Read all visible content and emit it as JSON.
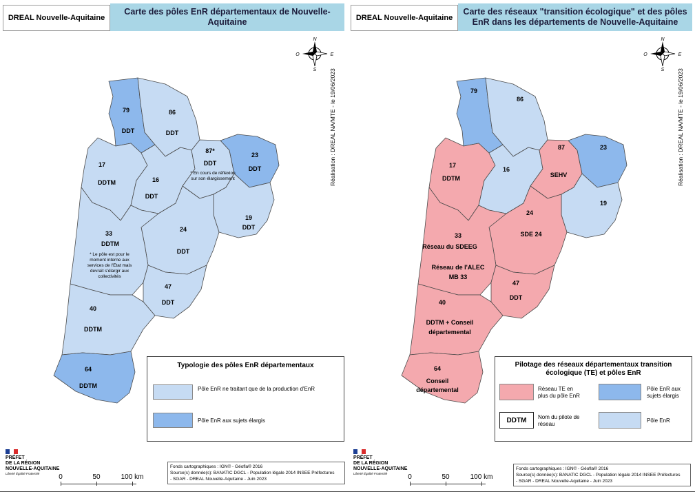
{
  "left": {
    "org": "DREAL Nouvelle-Aquitaine",
    "title": "Carte des pôles EnR départementaux de Nouvelle-Aquitaine",
    "credit": "Réalisation : DREAL NA/MTE - le 19/06/2023",
    "labels": {
      "d79_num": "79",
      "d79_pilot": "DDT",
      "d86_num": "86",
      "d86_pilot": "DDT",
      "d87_num": "87*",
      "d87_pilot": "DDT",
      "d87_note": "* En cours de réflexion sur son élargissement",
      "d23_num": "23",
      "d23_pilot": "DDT",
      "d17_num": "17",
      "d17_pilot": "DDTM",
      "d16_num": "16",
      "d16_pilot": "DDT",
      "d19_num": "19",
      "d19_pilot": "DDT",
      "d24_num": "24",
      "d24_pilot": "DDT",
      "d33_num": "33",
      "d33_pilot": "DDTM",
      "d33_note": "* Le pôle est pour le moment interne aux services de l'Etat mais devrait s'élargir aux collectivités",
      "d47_num": "47",
      "d47_pilot": "DDT",
      "d40_num": "40",
      "d40_pilot": "DDTM",
      "d64_num": "64",
      "d64_pilot": "DDTM"
    },
    "legend": {
      "title": "Typologie des pôles EnR départementaux",
      "item1": "Pôle EnR ne traitant que de la production d'EnR",
      "item2": "Pôle EnR aux sujets élargis"
    }
  },
  "right": {
    "org": "DREAL Nouvelle-Aquitaine",
    "title": "Carte des réseaux \"transition écologique\" et des pôles EnR dans les départements de Nouvelle-Aquitaine",
    "credit": "Réalisation : DREAL NA/MTE - le 19/06/2023",
    "labels": {
      "d79_num": "79",
      "d86_num": "86",
      "d87_num": "87",
      "d87_pilot": "SEHV",
      "d23_num": "23",
      "d17_num": "17",
      "d17_pilot": "DDTM",
      "d16_num": "16",
      "d19_num": "19",
      "d24_num": "24",
      "d24_pilot": "SDE 24",
      "d33_num": "33",
      "d33_pilot1": "Réseau du SDEEG",
      "d33_pilot2": "Réseau de l'ALEC",
      "d33_pilot3": "MB 33",
      "d47_num": "47",
      "d47_pilot": "DDT",
      "d40_num": "40",
      "d40_pilot1": "DDTM + Conseil",
      "d40_pilot2": "départemental",
      "d64_num": "64",
      "d64_pilot1": "Conseil",
      "d64_pilot2": "départemental"
    },
    "legend": {
      "title1": "Pilotage des réseaux départementaux transition",
      "title2": "écologique (TE) et pôles EnR",
      "item_te": "Réseau TE en plus du pôle EnR",
      "item_large": "Pôle EnR aux sujets élargis",
      "item_pilot_box": "DDTM",
      "item_pilot": "Nom du pilote de réseau",
      "item_enr": "Pôle EnR"
    }
  },
  "compass": {
    "n": "N",
    "s": "S",
    "e": "E",
    "w": "O"
  },
  "prefet": {
    "l1": "PRÉFET",
    "l2": "DE LA RÉGION",
    "l3": "NOUVELLE-AQUITAINE",
    "motto": "Liberté Égalité Fraternité"
  },
  "scale": {
    "t0": "0",
    "t50": "50",
    "t100": "100 km"
  },
  "sources": {
    "l1": "Fonds cartographiques : IGN© - Géofla® 2016",
    "l2": "Source(s) donnée(s): BANATIC DGCL - Population légale 2014 INSEE Préfectures",
    "l3": "- SGAR - DREAL Nouvelle-Aquitaine - Juin 2023"
  },
  "colors": {
    "light": "#c6dbf3",
    "dark": "#8db8ec",
    "pink": "#f4a9ae",
    "header": "#a9d6e6",
    "border": "#4a4a4a"
  }
}
